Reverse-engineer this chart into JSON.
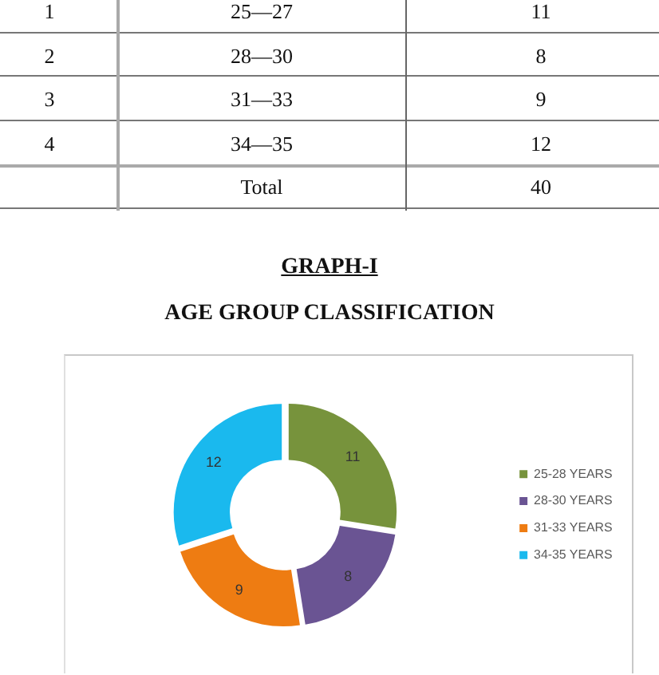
{
  "chart_data": {
    "type": "donut",
    "title": "GRAPH-I",
    "subtitle": "AGE GROUP CLASSIFICATION",
    "categories": [
      "25-28 YEARS",
      "28-30 YEARS",
      "31-33 YEARS",
      "34-35 YEARS"
    ],
    "values": [
      11,
      8,
      9,
      12
    ],
    "colors": [
      "#77933c",
      "#6a5493",
      "#ee7c12",
      "#1ab9ee"
    ],
    "data_labels": true,
    "legend": "right",
    "annotations": [
      "1",
      "25—27",
      "11",
      "2",
      "28—30",
      "8",
      "3",
      "31—33",
      "9",
      "4",
      "34—35",
      "12",
      "Total",
      "40"
    ]
  }
}
